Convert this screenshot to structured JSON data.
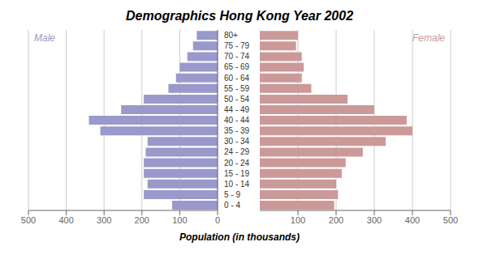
{
  "chart_data": {
    "type": "bar",
    "orientation": "horizontal",
    "title": "Demographics Hong Kong Year 2002",
    "x_label": "Population (in thousands)",
    "categories": [
      "0 - 4",
      "5 - 9",
      "10 - 14",
      "15 - 19",
      "20 - 24",
      "24 - 29",
      "30 - 34",
      "35 - 39",
      "40 - 44",
      "44 - 49",
      "50 - 54",
      "55 - 59",
      "60 - 64",
      "65 - 69",
      "70 - 74",
      "75 - 79",
      "80+"
    ],
    "series": [
      {
        "name": "Male",
        "color": "#9999CC",
        "values": [
          120,
          195,
          185,
          195,
          195,
          190,
          185,
          310,
          340,
          255,
          195,
          130,
          110,
          100,
          80,
          65,
          55
        ]
      },
      {
        "name": "Female",
        "color": "#CC9999",
        "values": [
          195,
          205,
          200,
          215,
          225,
          270,
          330,
          400,
          385,
          300,
          230,
          135,
          110,
          115,
          110,
          95,
          100
        ]
      }
    ],
    "xlim": [
      0,
      500
    ],
    "xticks": [
      0,
      100,
      200,
      300,
      400,
      500
    ],
    "grid": true
  }
}
